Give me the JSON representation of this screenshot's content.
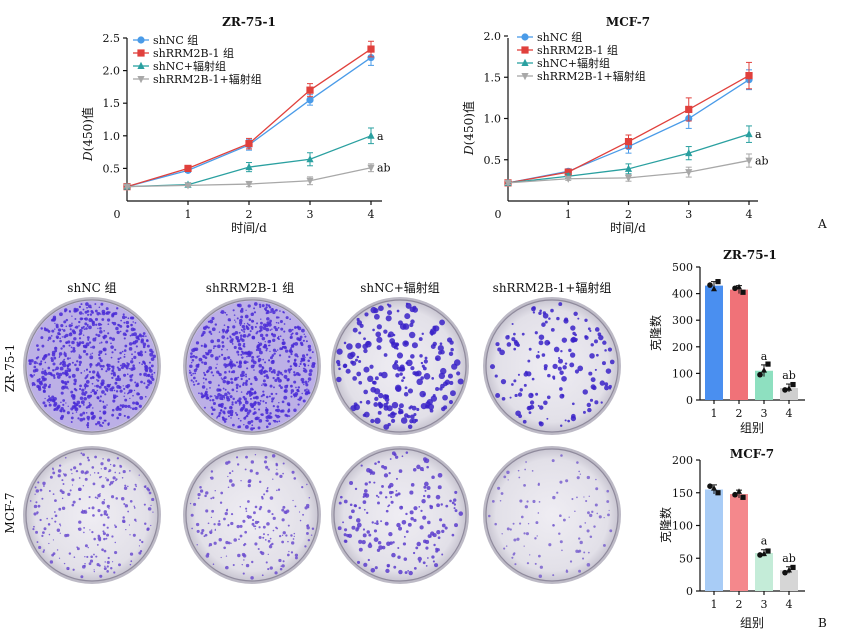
{
  "panel_labels": {
    "a": "A",
    "b": "B"
  },
  "line_charts": {
    "xlabel": "时间/d",
    "ylabel": "D(450)值",
    "ylabel_italic_part": "D",
    "ylabel_rest": "(450)值",
    "legend": [
      "shNC 组",
      "shRRM2B-1 组",
      "shNC+辐射组",
      "shRRM2B-1+辐射组"
    ],
    "colors": [
      "#4a9be8",
      "#e0403c",
      "#2aa0a0",
      "#a8a8a8"
    ],
    "markers": [
      "circle",
      "square",
      "triangle-up",
      "triangle-down"
    ]
  },
  "plate_grid": {
    "column_labels": [
      "shNC 组",
      "shRRM2B-1 组",
      "shNC+辐射组",
      "shRRM2B-1+辐射组"
    ],
    "row_labels": [
      "ZR-75-1",
      "MCF-7"
    ]
  },
  "bar_charts": {
    "xlabel": "组别",
    "ylabel": "克隆数",
    "colors": [
      "#4a8ff0",
      "#f07278",
      "#b8ecd4",
      "#d0d0d0"
    ],
    "top_colors": [
      "#4a8ff0",
      "#f07278",
      "#8ee0c0",
      "#cfcfcf"
    ],
    "bottom_colors": [
      "#a8ccf6",
      "#f4888c",
      "#c4ecd8",
      "#d6d6d6"
    ]
  },
  "chart_data": [
    {
      "type": "line",
      "title": "ZR-75-1",
      "xlabel": "时间/d",
      "ylabel": "D(450)值",
      "x": [
        0,
        1,
        2,
        3,
        4
      ],
      "xticks": [
        "0",
        "1",
        "2",
        "3",
        "4"
      ],
      "yticks": [
        "0",
        "0.5",
        "1.0",
        "1.5",
        "2.0",
        "2.5"
      ],
      "ylim": [
        0,
        2.5
      ],
      "series": [
        {
          "name": "shNC 组",
          "values": [
            0.22,
            0.47,
            0.86,
            1.55,
            2.2
          ],
          "errors": [
            0.02,
            0.03,
            0.08,
            0.08,
            0.12
          ]
        },
        {
          "name": "shRRM2B-1 组",
          "values": [
            0.22,
            0.5,
            0.88,
            1.7,
            2.33
          ],
          "errors": [
            0.02,
            0.03,
            0.08,
            0.1,
            0.12
          ]
        },
        {
          "name": "shNC+辐射组",
          "values": [
            0.22,
            0.25,
            0.52,
            0.64,
            1.0
          ],
          "errors": [
            0.02,
            0.03,
            0.07,
            0.1,
            0.12
          ]
        },
        {
          "name": "shRRM2B-1+辐射组",
          "values": [
            0.22,
            0.24,
            0.26,
            0.31,
            0.51
          ],
          "errors": [
            0.02,
            0.02,
            0.04,
            0.06,
            0.06
          ]
        }
      ],
      "annotations": [
        {
          "series": "shNC+辐射组",
          "text": "a"
        },
        {
          "series": "shRRM2B-1+辐射组",
          "text": "ab"
        }
      ]
    },
    {
      "type": "line",
      "title": "MCF-7",
      "xlabel": "时间/d",
      "ylabel": "D(450)值",
      "x": [
        0,
        1,
        2,
        3,
        4
      ],
      "xticks": [
        "0",
        "1",
        "2",
        "3",
        "4"
      ],
      "yticks": [
        "0",
        "0.5",
        "1.0",
        "1.5",
        "2.0"
      ],
      "ylim": [
        0,
        2.0
      ],
      "series": [
        {
          "name": "shNC 组",
          "values": [
            0.22,
            0.36,
            0.66,
            1.0,
            1.47
          ],
          "errors": [
            0.02,
            0.03,
            0.08,
            0.12,
            0.12
          ]
        },
        {
          "name": "shRRM2B-1 组",
          "values": [
            0.22,
            0.35,
            0.72,
            1.11,
            1.52
          ],
          "errors": [
            0.02,
            0.03,
            0.08,
            0.14,
            0.16
          ]
        },
        {
          "name": "shNC+辐射组",
          "values": [
            0.22,
            0.3,
            0.39,
            0.58,
            0.81
          ],
          "errors": [
            0.02,
            0.03,
            0.06,
            0.08,
            0.1
          ]
        },
        {
          "name": "shRRM2B-1+辐射组",
          "values": [
            0.22,
            0.27,
            0.28,
            0.35,
            0.49
          ],
          "errors": [
            0.02,
            0.02,
            0.04,
            0.06,
            0.08
          ]
        }
      ],
      "annotations": [
        {
          "series": "shNC+辐射组",
          "text": "a"
        },
        {
          "series": "shRRM2B-1+辐射组",
          "text": "ab"
        }
      ]
    },
    {
      "type": "bar",
      "title": "ZR-75-1",
      "xlabel": "组别",
      "ylabel": "克隆数",
      "categories": [
        "1",
        "2",
        "3",
        "4"
      ],
      "values": [
        430,
        415,
        110,
        45
      ],
      "errors": [
        15,
        15,
        22,
        15
      ],
      "points": [
        [
          432,
          445,
          418
        ],
        [
          420,
          405,
          425
        ],
        [
          95,
          135,
          112
        ],
        [
          38,
          58,
          44
        ]
      ],
      "yticks": [
        "0",
        "100",
        "200",
        "300",
        "400",
        "500"
      ],
      "ylim": [
        0,
        500
      ],
      "annotations": [
        "",
        "",
        "a",
        "ab"
      ]
    },
    {
      "type": "bar",
      "title": "MCF-7",
      "xlabel": "组别",
      "ylabel": "克隆数",
      "categories": [
        "1",
        "2",
        "3",
        "4"
      ],
      "values": [
        155,
        148,
        58,
        32
      ],
      "errors": [
        7,
        6,
        5,
        5
      ],
      "points": [
        [
          160,
          150,
          157
        ],
        [
          147,
          143,
          152
        ],
        [
          55,
          61,
          57
        ],
        [
          28,
          36,
          32
        ]
      ],
      "yticks": [
        "0",
        "50",
        "100",
        "150",
        "200"
      ],
      "ylim": [
        0,
        200
      ],
      "annotations": [
        "",
        "",
        "a",
        "ab"
      ]
    }
  ]
}
